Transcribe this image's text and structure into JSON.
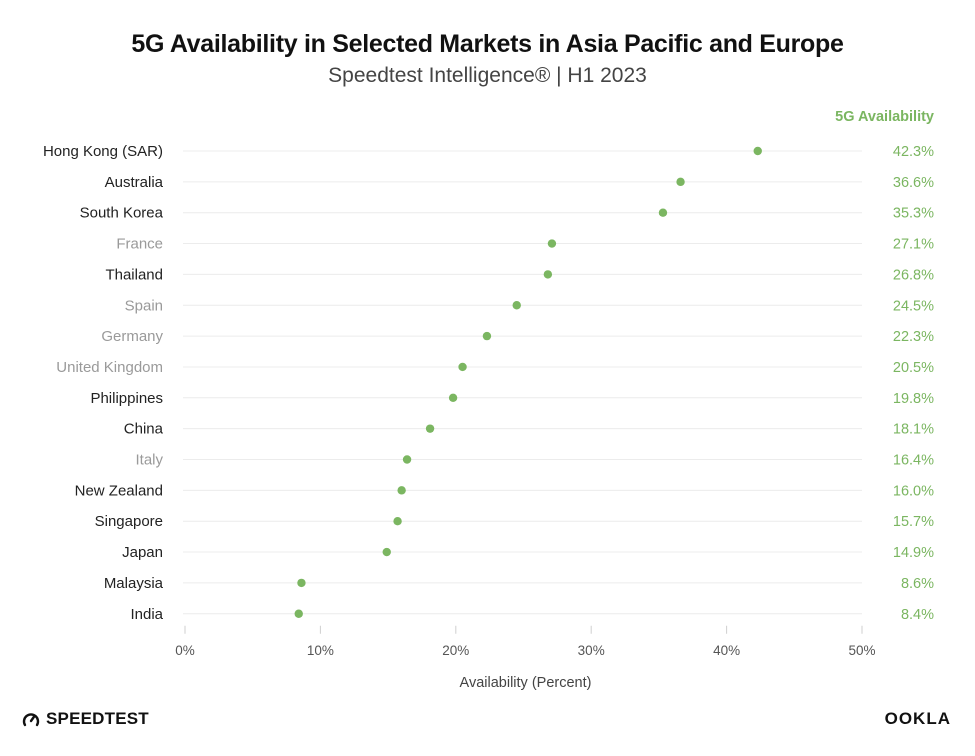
{
  "header": {
    "title": "5G Availability in Selected Markets in Asia Pacific and Europe",
    "subtitle": "Speedtest Intelligence® | H1 2023"
  },
  "footer": {
    "left_brand": "SPEEDTEST",
    "left_icon": "speedometer-icon",
    "right_brand": "OOKLA"
  },
  "colors": {
    "accent": "#7bb661",
    "label_primary": "#222222",
    "label_muted": "#9a9a9a",
    "grid": "#ececec"
  },
  "chart_data": {
    "type": "scatter",
    "title": "5G Availability in Selected Markets in Asia Pacific and Europe",
    "subtitle": "Speedtest Intelligence® | H1 2023",
    "xlabel": "Availability (Percent)",
    "value_column_header": "5G Availability",
    "xlim": [
      0,
      50
    ],
    "xticks": [
      0,
      10,
      20,
      30,
      40,
      50
    ],
    "xtick_labels": [
      "0%",
      "10%",
      "20%",
      "30%",
      "40%",
      "50%"
    ],
    "grid": true,
    "categories": [
      "Hong Kong (SAR)",
      "Australia",
      "South Korea",
      "France",
      "Thailand",
      "Spain",
      "Germany",
      "United Kingdom",
      "Philippines",
      "China",
      "Italy",
      "New Zealand",
      "Singapore",
      "Japan",
      "Malaysia",
      "India"
    ],
    "values": [
      42.3,
      36.6,
      35.3,
      27.1,
      26.8,
      24.5,
      22.3,
      20.5,
      19.8,
      18.1,
      16.4,
      16.0,
      15.7,
      14.9,
      8.6,
      8.4
    ],
    "value_labels": [
      "42.3%",
      "36.6%",
      "35.3%",
      "27.1%",
      "26.8%",
      "24.5%",
      "22.3%",
      "20.5%",
      "19.8%",
      "18.1%",
      "16.4%",
      "16.0%",
      "15.7%",
      "14.9%",
      "8.6%",
      "8.4%"
    ],
    "region": [
      "Asia Pacific",
      "Asia Pacific",
      "Asia Pacific",
      "Europe",
      "Asia Pacific",
      "Europe",
      "Europe",
      "Europe",
      "Asia Pacific",
      "Asia Pacific",
      "Europe",
      "Asia Pacific",
      "Asia Pacific",
      "Asia Pacific",
      "Asia Pacific",
      "Asia Pacific"
    ]
  }
}
